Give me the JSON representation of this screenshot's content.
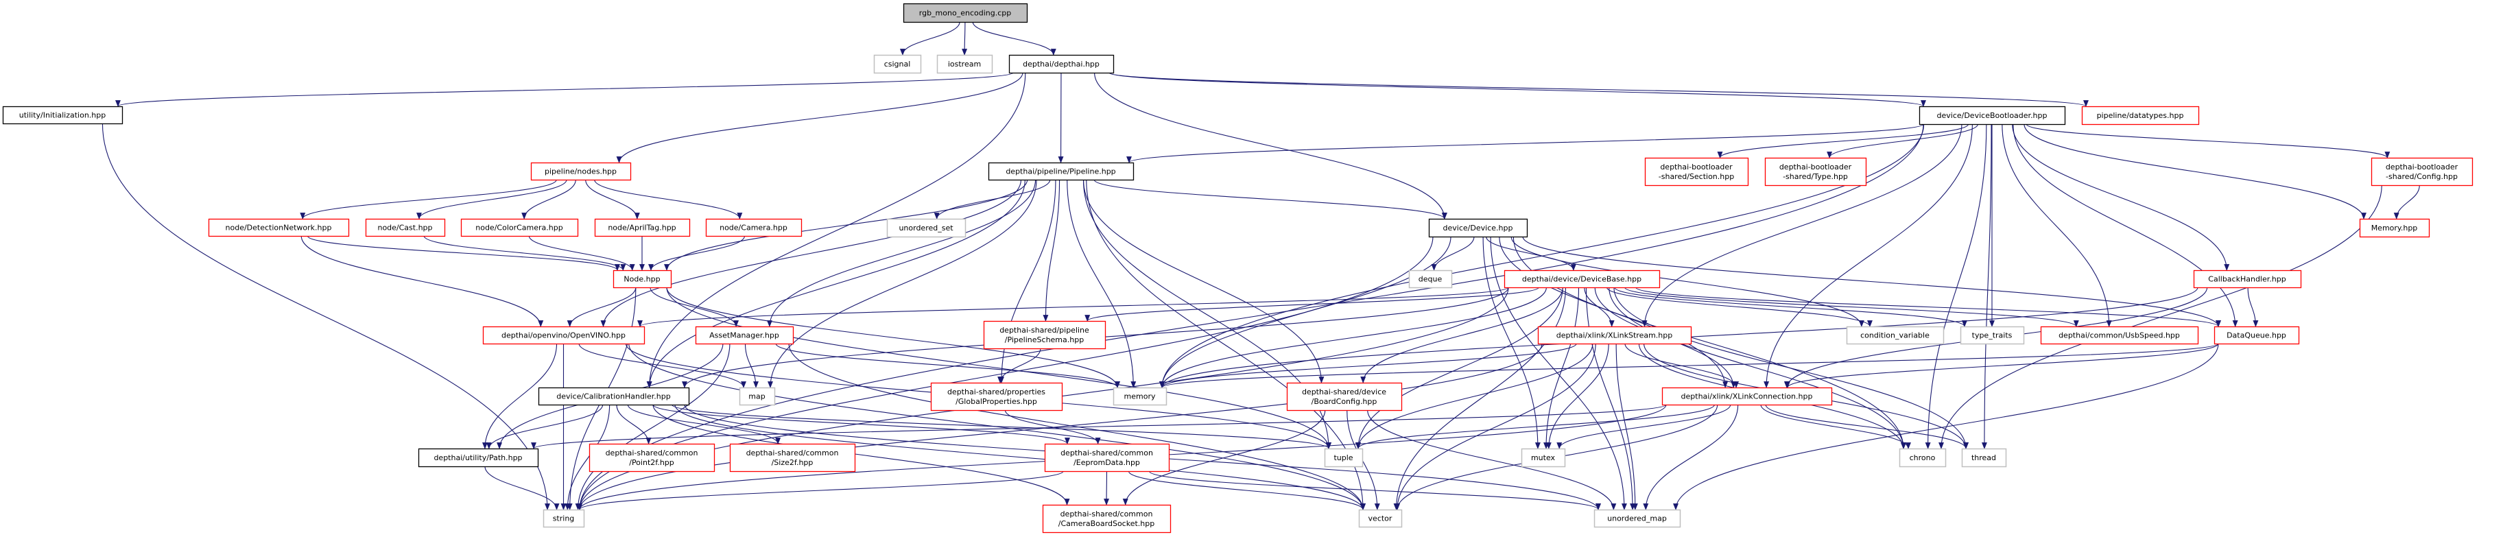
{
  "colors": {
    "edge": "#191970",
    "root_fill": "#bfbfbf",
    "documented_border": "#000000",
    "truncated_border": "#ff0000",
    "external_border": "#bfbfbf"
  },
  "graph": {
    "nodes": [
      {
        "id": "rgb",
        "lines": [
          "rgb_mono_encoding.cpp"
        ],
        "kind": "root"
      },
      {
        "id": "csignal",
        "lines": [
          "csignal"
        ],
        "kind": "external"
      },
      {
        "id": "iostream",
        "lines": [
          "iostream"
        ],
        "kind": "external"
      },
      {
        "id": "depthai",
        "lines": [
          "depthai/depthai.hpp"
        ],
        "kind": "documented"
      },
      {
        "id": "init",
        "lines": [
          "utility/Initialization.hpp"
        ],
        "kind": "documented"
      },
      {
        "id": "devboot",
        "lines": [
          "device/DeviceBootloader.hpp"
        ],
        "kind": "documented"
      },
      {
        "id": "datatypes",
        "lines": [
          "pipeline/datatypes.hpp"
        ],
        "kind": "truncated"
      },
      {
        "id": "nodes",
        "lines": [
          "pipeline/nodes.hpp"
        ],
        "kind": "truncated"
      },
      {
        "id": "pipeline",
        "lines": [
          "depthai/pipeline/Pipeline.hpp"
        ],
        "kind": "documented"
      },
      {
        "id": "section",
        "lines": [
          "depthai-bootloader",
          "-shared/Section.hpp"
        ],
        "kind": "truncated"
      },
      {
        "id": "type",
        "lines": [
          "depthai-bootloader",
          "-shared/Type.hpp"
        ],
        "kind": "truncated"
      },
      {
        "id": "config",
        "lines": [
          "depthai-bootloader",
          "-shared/Config.hpp"
        ],
        "kind": "truncated"
      },
      {
        "id": "detnet",
        "lines": [
          "node/DetectionNetwork.hpp"
        ],
        "kind": "truncated"
      },
      {
        "id": "cast",
        "lines": [
          "node/Cast.hpp"
        ],
        "kind": "truncated"
      },
      {
        "id": "colorcam",
        "lines": [
          "node/ColorCamera.hpp"
        ],
        "kind": "truncated"
      },
      {
        "id": "apriltag",
        "lines": [
          "node/AprilTag.hpp"
        ],
        "kind": "truncated"
      },
      {
        "id": "camera",
        "lines": [
          "node/Camera.hpp"
        ],
        "kind": "truncated"
      },
      {
        "id": "uset",
        "lines": [
          "unordered_set"
        ],
        "kind": "external"
      },
      {
        "id": "device",
        "lines": [
          "device/Device.hpp"
        ],
        "kind": "documented"
      },
      {
        "id": "memoryhpp",
        "lines": [
          "Memory.hpp"
        ],
        "kind": "truncated"
      },
      {
        "id": "node",
        "lines": [
          "Node.hpp"
        ],
        "kind": "truncated"
      },
      {
        "id": "deque",
        "lines": [
          "deque"
        ],
        "kind": "external"
      },
      {
        "id": "devbase",
        "lines": [
          "depthai/device/DeviceBase.hpp"
        ],
        "kind": "truncated"
      },
      {
        "id": "callback",
        "lines": [
          "CallbackHandler.hpp"
        ],
        "kind": "truncated"
      },
      {
        "id": "openvino",
        "lines": [
          "depthai/openvino/OpenVINO.hpp"
        ],
        "kind": "truncated"
      },
      {
        "id": "asset",
        "lines": [
          "AssetManager.hpp"
        ],
        "kind": "truncated"
      },
      {
        "id": "schema",
        "lines": [
          "depthai-shared/pipeline",
          "/PipelineSchema.hpp"
        ],
        "kind": "truncated"
      },
      {
        "id": "xstream",
        "lines": [
          "depthai/xlink/XLinkStream.hpp"
        ],
        "kind": "truncated"
      },
      {
        "id": "condvar",
        "lines": [
          "condition_variable"
        ],
        "kind": "external"
      },
      {
        "id": "typetraits",
        "lines": [
          "type_traits"
        ],
        "kind": "external"
      },
      {
        "id": "usbspeed",
        "lines": [
          "depthai/common/UsbSpeed.hpp"
        ],
        "kind": "truncated"
      },
      {
        "id": "dataqueue",
        "lines": [
          "DataQueue.hpp"
        ],
        "kind": "truncated"
      },
      {
        "id": "calib",
        "lines": [
          "device/CalibrationHandler.hpp"
        ],
        "kind": "documented"
      },
      {
        "id": "map",
        "lines": [
          "map"
        ],
        "kind": "external"
      },
      {
        "id": "globalprops",
        "lines": [
          "depthai-shared/properties",
          "/GlobalProperties.hpp"
        ],
        "kind": "truncated"
      },
      {
        "id": "memory",
        "lines": [
          "memory"
        ],
        "kind": "external"
      },
      {
        "id": "boardcfg",
        "lines": [
          "depthai-shared/device",
          "/BoardConfig.hpp"
        ],
        "kind": "truncated"
      },
      {
        "id": "xconn",
        "lines": [
          "depthai/xlink/XLinkConnection.hpp"
        ],
        "kind": "truncated"
      },
      {
        "id": "path",
        "lines": [
          "depthai/utility/Path.hpp"
        ],
        "kind": "documented"
      },
      {
        "id": "point2f",
        "lines": [
          "depthai-shared/common",
          "/Point2f.hpp"
        ],
        "kind": "truncated"
      },
      {
        "id": "size2f",
        "lines": [
          "depthai-shared/common",
          "/Size2f.hpp"
        ],
        "kind": "truncated"
      },
      {
        "id": "eeprom",
        "lines": [
          "depthai-shared/common",
          "/EepromData.hpp"
        ],
        "kind": "truncated"
      },
      {
        "id": "tuple",
        "lines": [
          "tuple"
        ],
        "kind": "external"
      },
      {
        "id": "mutex",
        "lines": [
          "mutex"
        ],
        "kind": "external"
      },
      {
        "id": "chrono",
        "lines": [
          "chrono"
        ],
        "kind": "external"
      },
      {
        "id": "thread",
        "lines": [
          "thread"
        ],
        "kind": "external"
      },
      {
        "id": "string",
        "lines": [
          "string"
        ],
        "kind": "external"
      },
      {
        "id": "cbsocket",
        "lines": [
          "depthai-shared/common",
          "/CameraBoardSocket.hpp"
        ],
        "kind": "truncated"
      },
      {
        "id": "vector",
        "lines": [
          "vector"
        ],
        "kind": "external"
      },
      {
        "id": "umap",
        "lines": [
          "unordered_map"
        ],
        "kind": "external"
      }
    ],
    "edges": [
      [
        "rgb",
        "csignal"
      ],
      [
        "rgb",
        "iostream"
      ],
      [
        "rgb",
        "depthai"
      ],
      [
        "depthai",
        "init"
      ],
      [
        "depthai",
        "calib"
      ],
      [
        "depthai",
        "nodes"
      ],
      [
        "depthai",
        "pipeline"
      ],
      [
        "depthai",
        "device"
      ],
      [
        "depthai",
        "devboot"
      ],
      [
        "depthai",
        "datatypes"
      ],
      [
        "init",
        "string"
      ],
      [
        "nodes",
        "detnet"
      ],
      [
        "nodes",
        "cast"
      ],
      [
        "nodes",
        "colorcam"
      ],
      [
        "nodes",
        "apriltag"
      ],
      [
        "nodes",
        "camera"
      ],
      [
        "detnet",
        "node"
      ],
      [
        "detnet",
        "openvino"
      ],
      [
        "cast",
        "node"
      ],
      [
        "colorcam",
        "node"
      ],
      [
        "apriltag",
        "node"
      ],
      [
        "camera",
        "node"
      ],
      [
        "node",
        "openvino"
      ],
      [
        "node",
        "asset"
      ],
      [
        "node",
        "string"
      ],
      [
        "node",
        "memory"
      ],
      [
        "node",
        "tuple"
      ],
      [
        "pipeline",
        "uset"
      ],
      [
        "pipeline",
        "node"
      ],
      [
        "pipeline",
        "openvino"
      ],
      [
        "pipeline",
        "asset"
      ],
      [
        "pipeline",
        "schema"
      ],
      [
        "pipeline",
        "globalprops"
      ],
      [
        "pipeline",
        "memory"
      ],
      [
        "pipeline",
        "map"
      ],
      [
        "pipeline",
        "device"
      ],
      [
        "pipeline",
        "boardcfg"
      ],
      [
        "pipeline",
        "calib"
      ],
      [
        "pipeline",
        "vector"
      ],
      [
        "pipeline",
        "tuple"
      ],
      [
        "device",
        "deque"
      ],
      [
        "device",
        "devbase"
      ],
      [
        "device",
        "memory"
      ],
      [
        "device",
        "mutex"
      ],
      [
        "device",
        "string"
      ],
      [
        "device",
        "dataqueue"
      ],
      [
        "device",
        "condvar"
      ],
      [
        "device",
        "chrono"
      ],
      [
        "device",
        "xconn"
      ],
      [
        "device",
        "umap"
      ],
      [
        "devboot",
        "pipeline"
      ],
      [
        "devboot",
        "section"
      ],
      [
        "devboot",
        "type"
      ],
      [
        "devboot",
        "config"
      ],
      [
        "devboot",
        "memoryhpp"
      ],
      [
        "devboot",
        "callback"
      ],
      [
        "devboot",
        "dataqueue"
      ],
      [
        "devboot",
        "xstream"
      ],
      [
        "devboot",
        "usbspeed"
      ],
      [
        "devboot",
        "typetraits"
      ],
      [
        "devboot",
        "xconn"
      ],
      [
        "devboot",
        "string"
      ],
      [
        "devboot",
        "thread"
      ],
      [
        "devboot",
        "chrono"
      ],
      [
        "devboot",
        "memory"
      ],
      [
        "config",
        "memoryhpp"
      ],
      [
        "config",
        "chrono"
      ],
      [
        "devbase",
        "openvino"
      ],
      [
        "devbase",
        "schema"
      ],
      [
        "devbase",
        "memory"
      ],
      [
        "devbase",
        "calib"
      ],
      [
        "devbase",
        "boardcfg"
      ],
      [
        "devbase",
        "xstream"
      ],
      [
        "devbase",
        "xconn"
      ],
      [
        "devbase",
        "condvar"
      ],
      [
        "devbase",
        "typetraits"
      ],
      [
        "devbase",
        "usbspeed"
      ],
      [
        "devbase",
        "dataqueue"
      ],
      [
        "devbase",
        "chrono"
      ],
      [
        "devbase",
        "thread"
      ],
      [
        "devbase",
        "mutex"
      ],
      [
        "devbase",
        "tuple"
      ],
      [
        "devbase",
        "vector"
      ],
      [
        "devbase",
        "string"
      ],
      [
        "devbase",
        "umap"
      ],
      [
        "xstream",
        "xconn"
      ],
      [
        "xstream",
        "memory"
      ],
      [
        "xstream",
        "mutex"
      ],
      [
        "xstream",
        "tuple"
      ],
      [
        "xstream",
        "chrono"
      ],
      [
        "xstream",
        "thread"
      ],
      [
        "xstream",
        "vector"
      ],
      [
        "xstream",
        "umap"
      ],
      [
        "xstream",
        "string"
      ],
      [
        "xconn",
        "path"
      ],
      [
        "xconn",
        "string"
      ],
      [
        "xconn",
        "tuple"
      ],
      [
        "xconn",
        "mutex"
      ],
      [
        "xconn",
        "vector"
      ],
      [
        "xconn",
        "umap"
      ],
      [
        "xconn",
        "chrono"
      ],
      [
        "xconn",
        "thread"
      ],
      [
        "callback",
        "dataqueue"
      ],
      [
        "callback",
        "xconn"
      ],
      [
        "callback",
        "memory"
      ],
      [
        "dataqueue",
        "xconn"
      ],
      [
        "dataqueue",
        "memory"
      ],
      [
        "dataqueue",
        "umap"
      ],
      [
        "openvino",
        "path"
      ],
      [
        "openvino",
        "string"
      ],
      [
        "openvino",
        "map"
      ],
      [
        "openvino",
        "vector"
      ],
      [
        "openvino",
        "tuple"
      ],
      [
        "asset",
        "map"
      ],
      [
        "asset",
        "memory"
      ],
      [
        "asset",
        "path"
      ],
      [
        "asset",
        "vector"
      ],
      [
        "asset",
        "string"
      ],
      [
        "calib",
        "path"
      ],
      [
        "calib",
        "string"
      ],
      [
        "calib",
        "point2f"
      ],
      [
        "calib",
        "size2f"
      ],
      [
        "calib",
        "eeprom"
      ],
      [
        "calib",
        "cbsocket"
      ],
      [
        "calib",
        "vector"
      ],
      [
        "calib",
        "tuple"
      ],
      [
        "calib",
        "umap"
      ],
      [
        "path",
        "string"
      ],
      [
        "schema",
        "globalprops"
      ],
      [
        "globalprops",
        "eeprom"
      ],
      [
        "boardcfg",
        "cbsocket"
      ],
      [
        "boardcfg",
        "umap"
      ],
      [
        "boardcfg",
        "vector"
      ],
      [
        "eeprom",
        "cbsocket"
      ],
      [
        "eeprom",
        "string"
      ],
      [
        "eeprom",
        "vector"
      ],
      [
        "eeprom",
        "umap"
      ]
    ]
  }
}
